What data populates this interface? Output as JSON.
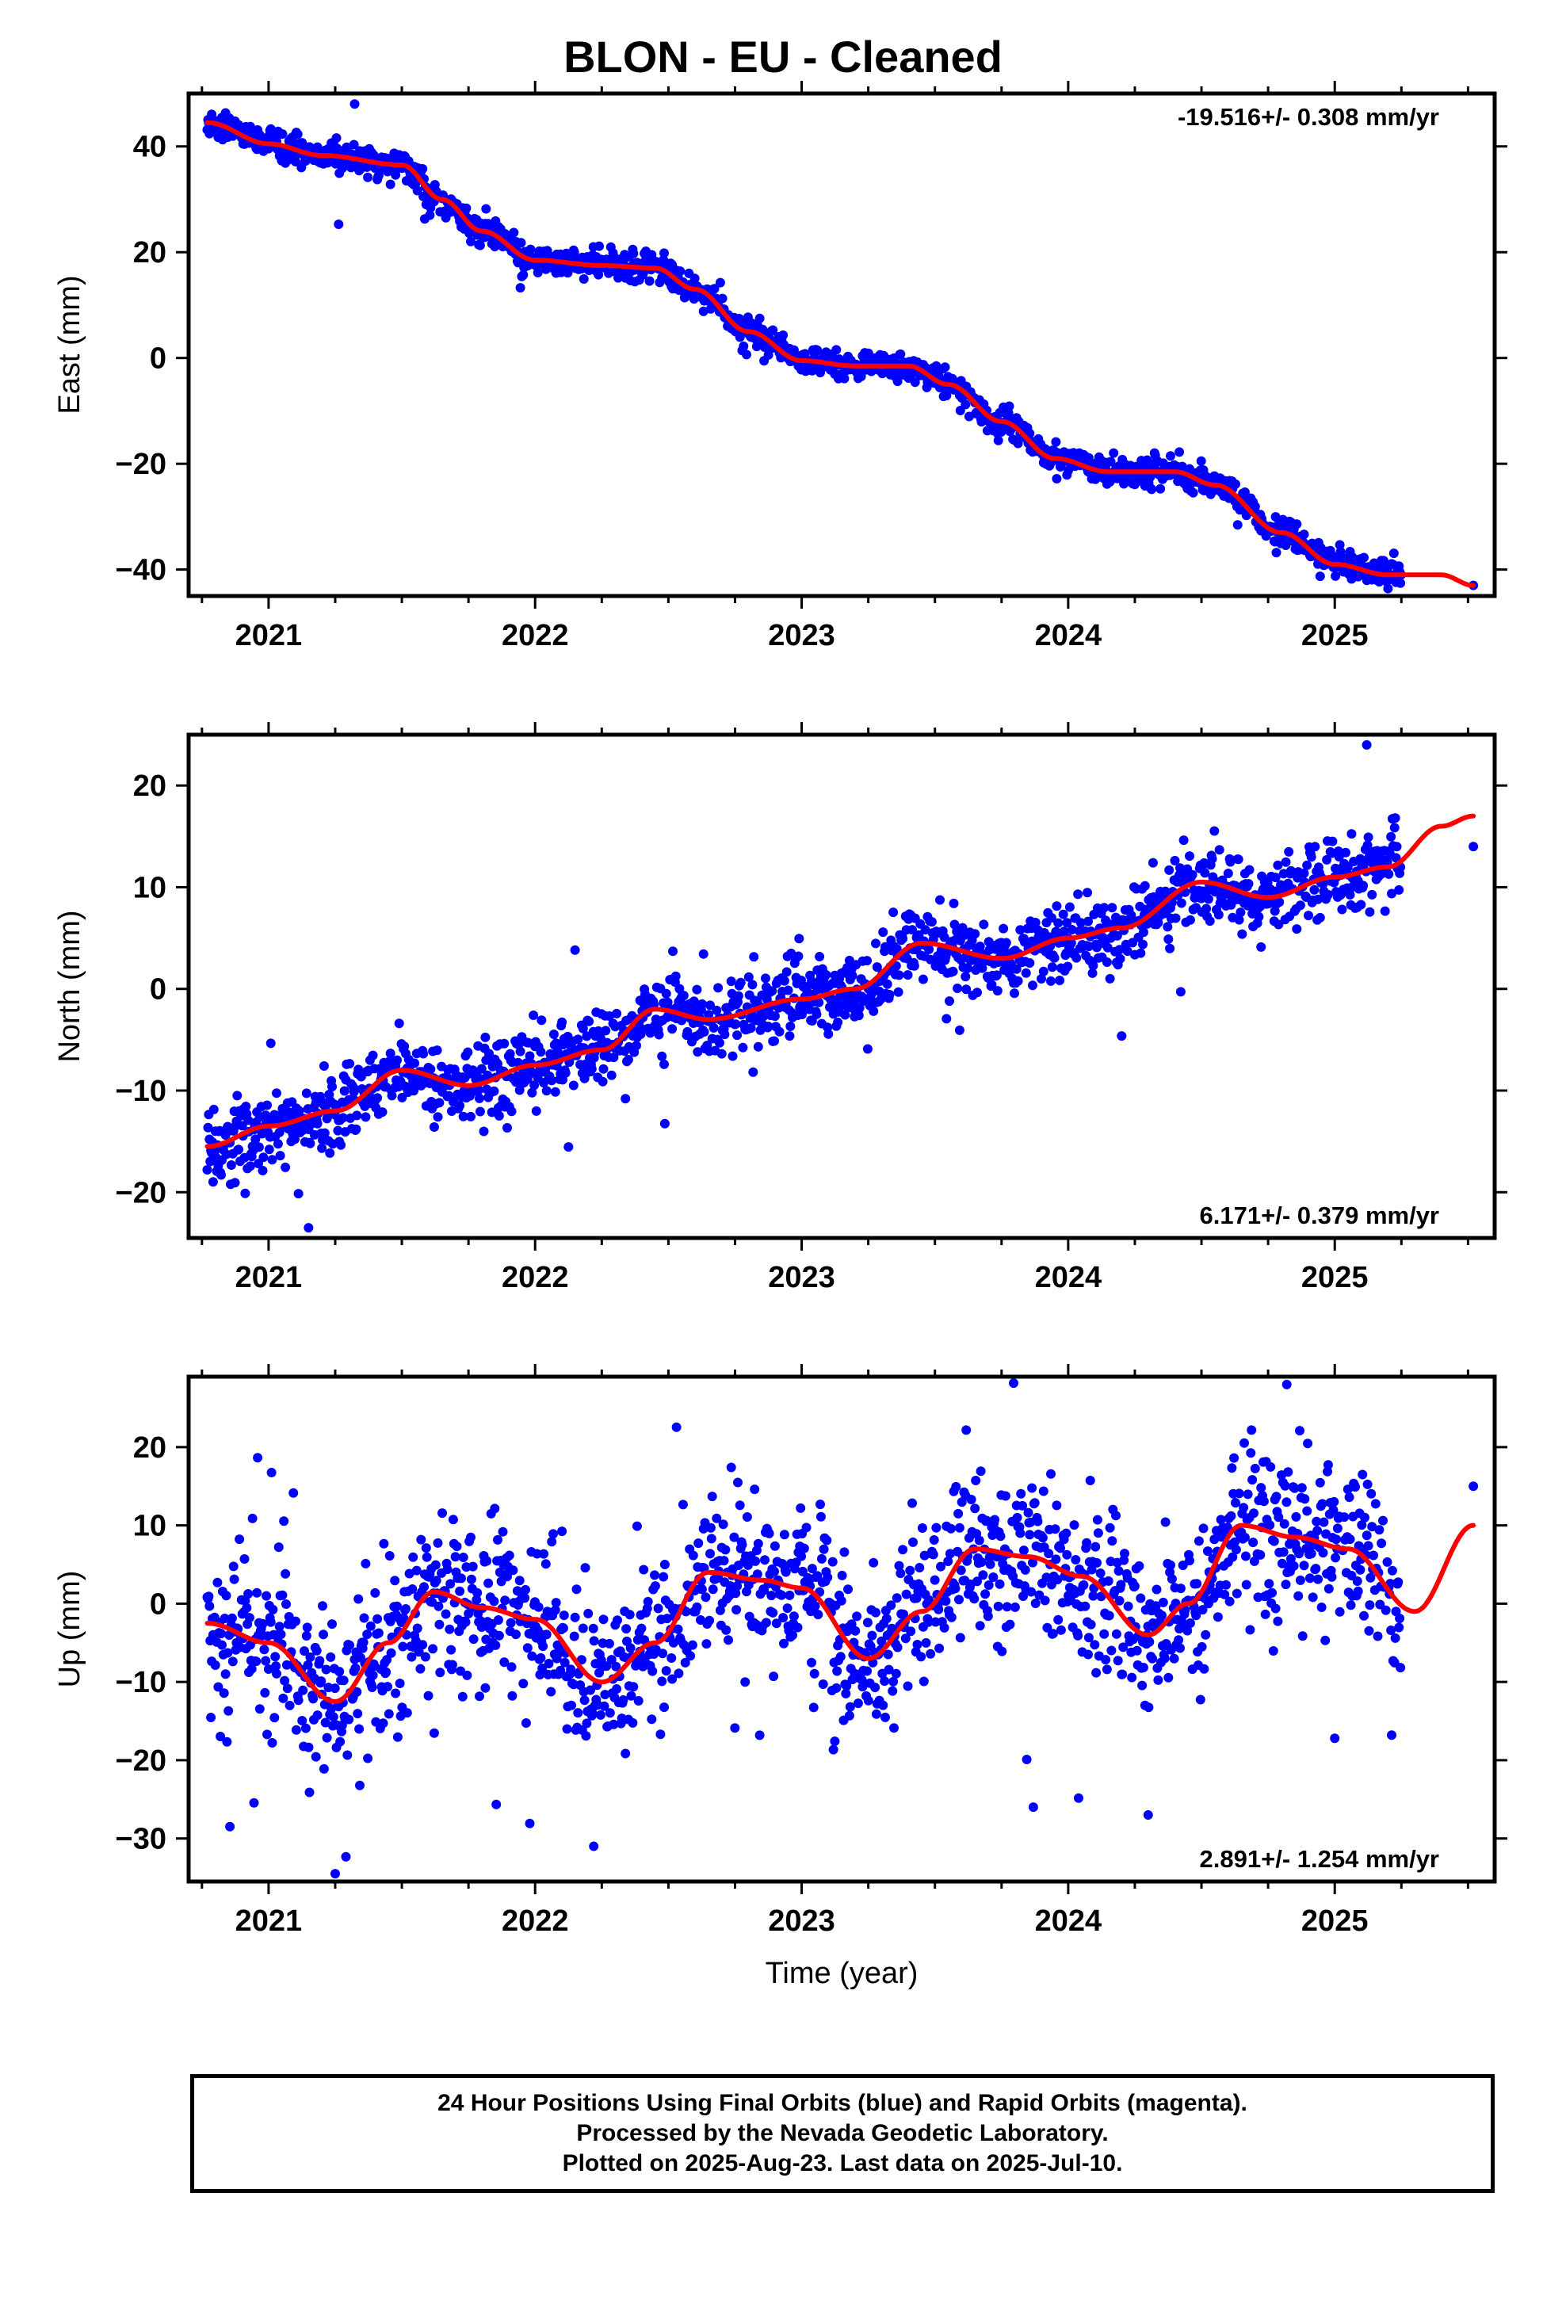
{
  "title": "BLON  - EU - Cleaned",
  "colors": {
    "final_orbits": "#0000ff",
    "model_fit": "#ff0000",
    "frame": "#000000"
  },
  "chart_data": [
    {
      "type": "scatter",
      "ylabel": "East (mm)",
      "xlabel": "",
      "rate_label": "-19.516+/- 0.308 mm/yr",
      "rate_position": "top-right",
      "xlim": [
        2020.7,
        2025.6
      ],
      "ylim": [
        -45,
        50
      ],
      "xticks": [
        2021,
        2022,
        2023,
        2024,
        2025
      ],
      "yticks": [
        -40,
        -20,
        0,
        20,
        40
      ],
      "grid": false,
      "data_span": [
        2020.77,
        2025.25
      ],
      "extra_points": [
        [
          2025.52,
          -43
        ]
      ],
      "model": [
        [
          2020.77,
          44.5
        ],
        [
          2021.0,
          40.5
        ],
        [
          2021.2,
          38.3
        ],
        [
          2021.5,
          36.5
        ],
        [
          2021.65,
          30.0
        ],
        [
          2021.8,
          24.0
        ],
        [
          2022.0,
          18.5
        ],
        [
          2022.25,
          17.5
        ],
        [
          2022.45,
          17.0
        ],
        [
          2022.6,
          13.0
        ],
        [
          2022.8,
          5.0
        ],
        [
          2023.0,
          -0.5
        ],
        [
          2023.2,
          -1.5
        ],
        [
          2023.4,
          -1.5
        ],
        [
          2023.55,
          -5.0
        ],
        [
          2023.75,
          -12.0
        ],
        [
          2023.95,
          -19.0
        ],
        [
          2024.15,
          -21.5
        ],
        [
          2024.4,
          -21.5
        ],
        [
          2024.55,
          -24.0
        ],
        [
          2024.8,
          -33.0
        ],
        [
          2025.0,
          -39.0
        ],
        [
          2025.2,
          -41.0
        ],
        [
          2025.4,
          -41.0
        ],
        [
          2025.52,
          -43.0
        ]
      ],
      "scatter_sd": 1.3,
      "outlier_rate": 0.02
    },
    {
      "type": "scatter",
      "ylabel": "North (mm)",
      "xlabel": "",
      "rate_label": "6.171+/- 0.379 mm/yr",
      "rate_position": "bottom-right",
      "xlim": [
        2020.7,
        2025.6
      ],
      "ylim": [
        -24.5,
        25
      ],
      "xticks": [
        2021,
        2022,
        2023,
        2024,
        2025
      ],
      "yticks": [
        -20,
        -10,
        0,
        10,
        20
      ],
      "grid": false,
      "data_span": [
        2020.77,
        2025.25
      ],
      "extra_points": [
        [
          2025.52,
          14
        ],
        [
          2025.12,
          24
        ],
        [
          2021.15,
          -23.5
        ]
      ],
      "model": [
        [
          2020.77,
          -15.5
        ],
        [
          2021.0,
          -13.5
        ],
        [
          2021.25,
          -12.0
        ],
        [
          2021.5,
          -8.0
        ],
        [
          2021.75,
          -9.5
        ],
        [
          2022.0,
          -7.5
        ],
        [
          2022.25,
          -6.0
        ],
        [
          2022.45,
          -2.0
        ],
        [
          2022.65,
          -3.0
        ],
        [
          2023.0,
          -1.0
        ],
        [
          2023.2,
          0.0
        ],
        [
          2023.45,
          4.5
        ],
        [
          2023.75,
          3.0
        ],
        [
          2024.0,
          5.0
        ],
        [
          2024.2,
          6.0
        ],
        [
          2024.5,
          10.5
        ],
        [
          2024.75,
          9.0
        ],
        [
          2025.0,
          11.0
        ],
        [
          2025.2,
          12.0
        ],
        [
          2025.4,
          16.0
        ],
        [
          2025.52,
          17.0
        ]
      ],
      "scatter_sd": 1.8,
      "outlier_rate": 0.03
    },
    {
      "type": "scatter",
      "ylabel": "Up (mm)",
      "xlabel": "Time (year)",
      "rate_label": "2.891+/- 1.254 mm/yr",
      "rate_position": "bottom-right",
      "xlim": [
        2020.7,
        2025.6
      ],
      "ylim": [
        -35.5,
        29
      ],
      "xticks": [
        2021,
        2022,
        2023,
        2024,
        2025
      ],
      "yticks": [
        -30,
        -20,
        -10,
        0,
        10,
        20
      ],
      "grid": false,
      "data_span": [
        2020.77,
        2025.25
      ],
      "extra_points": [
        [
          2025.52,
          15
        ],
        [
          2021.25,
          -34.5
        ],
        [
          2022.22,
          -31
        ],
        [
          2024.3,
          -27
        ],
        [
          2024.82,
          28
        ]
      ],
      "model": [
        [
          2020.77,
          -2.5
        ],
        [
          2021.0,
          -5.0
        ],
        [
          2021.25,
          -12.5
        ],
        [
          2021.45,
          -5.0
        ],
        [
          2021.62,
          1.5
        ],
        [
          2021.8,
          -0.5
        ],
        [
          2022.0,
          -2.0
        ],
        [
          2022.25,
          -10.0
        ],
        [
          2022.45,
          -5.0
        ],
        [
          2022.65,
          4.0
        ],
        [
          2022.85,
          3.0
        ],
        [
          2023.0,
          2.0
        ],
        [
          2023.25,
          -7.0
        ],
        [
          2023.45,
          -1.0
        ],
        [
          2023.65,
          7.0
        ],
        [
          2023.85,
          6.0
        ],
        [
          2024.05,
          3.5
        ],
        [
          2024.3,
          -4.0
        ],
        [
          2024.45,
          0.0
        ],
        [
          2024.65,
          10.0
        ],
        [
          2024.85,
          8.5
        ],
        [
          2025.05,
          7.0
        ],
        [
          2025.3,
          -1.0
        ],
        [
          2025.52,
          10.0
        ]
      ],
      "scatter_sd": 5.0,
      "outlier_rate": 0.04
    }
  ],
  "footer": {
    "line1": "24 Hour Positions Using Final Orbits (blue) and Rapid Orbits (magenta).",
    "line2": "Processed by the Nevada Geodetic Laboratory.",
    "line3": "Plotted on 2025-Aug-23. Last data on 2025-Jul-10."
  }
}
